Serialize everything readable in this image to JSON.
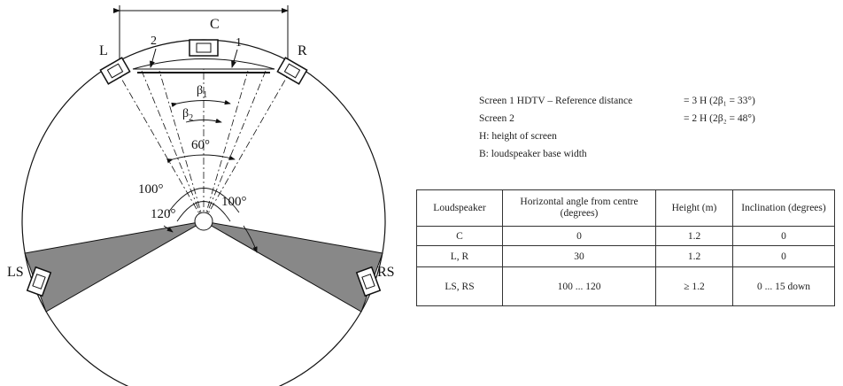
{
  "diagram": {
    "labels": {
      "C": "C",
      "L": "L",
      "R": "R",
      "LS": "LS",
      "RS": "RS",
      "screen1": "1",
      "screen2": "2",
      "beta1": {
        "symbol": "β",
        "sub": "1"
      },
      "beta2": {
        "symbol": "β",
        "sub": "2"
      },
      "angle60": "60°",
      "angle100_left": "100°",
      "angle120": "120°",
      "angle100_right": "100°"
    }
  },
  "legend": [
    {
      "text": "Screen 1 HDTV – Reference distance",
      "value": "= 3 H (2β₁ = 33°)"
    },
    {
      "text": "Screen 2",
      "value": "= 2 H (2β₂ = 48°)"
    },
    {
      "text": "H: height of screen"
    },
    {
      "text": "B: loudspeaker base width"
    }
  ],
  "table": {
    "header": [
      "Loudspeaker",
      "Horizontal angle from centre (degrees)",
      "Height (m)",
      "Inclination (degrees)"
    ],
    "rows": [
      [
        "C",
        "0",
        "1.2",
        "0"
      ],
      [
        "L, R",
        "30",
        "1.2",
        "0"
      ],
      [
        "LS, RS",
        "100 ... 120",
        "≥ 1.2",
        "0 ... 15  down"
      ]
    ]
  }
}
